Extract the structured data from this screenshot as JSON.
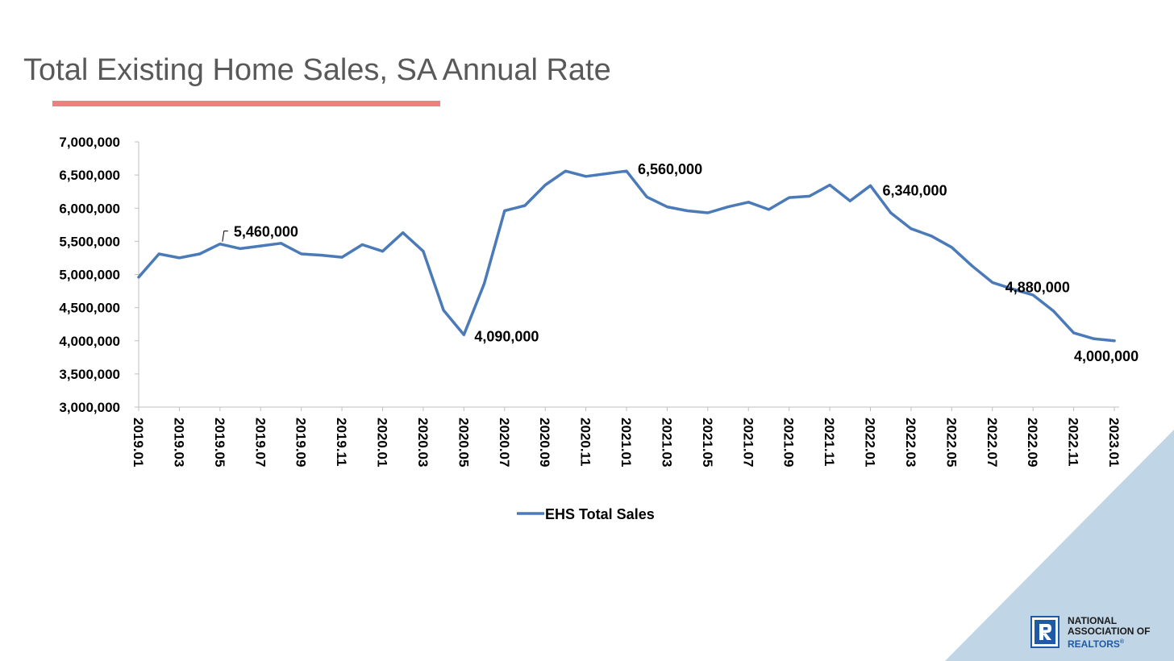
{
  "title": "Total Existing Home Sales, SA Annual Rate",
  "colors": {
    "line": "#4a7ab8",
    "title_underline": "#f08080",
    "corner": "#c0d5e6",
    "axis": "#bfbfbf",
    "logo_blue": "#1f5aa6"
  },
  "logo": {
    "icon": "realtor-r-icon",
    "line1": "NATIONAL",
    "line2": "ASSOCIATION OF",
    "line3": "REALTORS",
    "registered": "®"
  },
  "chart_data": {
    "type": "line",
    "title": "Total Existing Home Sales, SA Annual Rate",
    "xlabel": "",
    "ylabel": "",
    "ylim": [
      3000000,
      7000000
    ],
    "yticks": [
      3000000,
      3500000,
      4000000,
      4500000,
      5000000,
      5500000,
      6000000,
      6500000,
      7000000
    ],
    "ytick_labels": [
      "3,000,000",
      "3,500,000",
      "4,000,000",
      "4,500,000",
      "5,000,000",
      "5,500,000",
      "6,000,000",
      "6,500,000",
      "7,000,000"
    ],
    "xtick_labels": [
      "2019.01",
      "2019.03",
      "2019.05",
      "2019.07",
      "2019.09",
      "2019.11",
      "2020.01",
      "2020.03",
      "2020.05",
      "2020.07",
      "2020.09",
      "2020.11",
      "2021.01",
      "2021.03",
      "2021.05",
      "2021.07",
      "2021.09",
      "2021.11",
      "2022.01",
      "2022.03",
      "2022.05",
      "2022.07",
      "2022.09",
      "2022.11",
      "2023.01"
    ],
    "grid": false,
    "legend_position": "bottom-center",
    "series": [
      {
        "name": "EHS Total Sales",
        "x": [
          "2019.01",
          "2019.02",
          "2019.03",
          "2019.04",
          "2019.05",
          "2019.06",
          "2019.07",
          "2019.08",
          "2019.09",
          "2019.10",
          "2019.11",
          "2019.12",
          "2020.01",
          "2020.02",
          "2020.03",
          "2020.04",
          "2020.05",
          "2020.06",
          "2020.07",
          "2020.08",
          "2020.09",
          "2020.10",
          "2020.11",
          "2020.12",
          "2021.01",
          "2021.02",
          "2021.03",
          "2021.04",
          "2021.05",
          "2021.06",
          "2021.07",
          "2021.08",
          "2021.09",
          "2021.10",
          "2021.11",
          "2021.12",
          "2022.01",
          "2022.02",
          "2022.03",
          "2022.04",
          "2022.05",
          "2022.06",
          "2022.07",
          "2022.08",
          "2022.09",
          "2022.10",
          "2022.11",
          "2022.12",
          "2023.01"
        ],
        "values": [
          4960000,
          5310000,
          5250000,
          5310000,
          5460000,
          5390000,
          5430000,
          5470000,
          5310000,
          5290000,
          5260000,
          5450000,
          5350000,
          5630000,
          5350000,
          4460000,
          4090000,
          4860000,
          5960000,
          6040000,
          6350000,
          6560000,
          6480000,
          6520000,
          6560000,
          6170000,
          6020000,
          5960000,
          5930000,
          6020000,
          6090000,
          5980000,
          6160000,
          6180000,
          6350000,
          6110000,
          6340000,
          5930000,
          5690000,
          5580000,
          5410000,
          5130000,
          4880000,
          4780000,
          4690000,
          4450000,
          4120000,
          4030000,
          4000000
        ]
      }
    ],
    "annotations": [
      {
        "label": "5,460,000",
        "x": "2019.05",
        "y": 5460000
      },
      {
        "label": "4,090,000",
        "x": "2020.05",
        "y": 4090000
      },
      {
        "label": "6,560,000",
        "x": "2021.01",
        "y": 6560000
      },
      {
        "label": "6,340,000",
        "x": "2022.01",
        "y": 6340000
      },
      {
        "label": "4,880,000",
        "x": "2022.07",
        "y": 4880000
      },
      {
        "label": "4,000,000",
        "x": "2023.01",
        "y": 4000000
      }
    ]
  }
}
